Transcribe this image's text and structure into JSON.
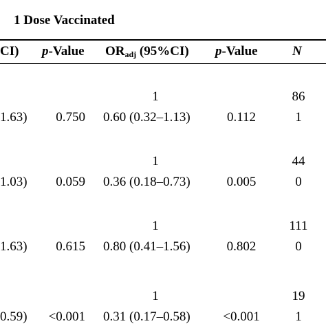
{
  "table": {
    "group_heading": "1 Dose Vaccinated",
    "headers": {
      "prev_ci_tail": "CI)",
      "p_value_italic": "p",
      "p_value_rest": "-Value",
      "or_prefix": "OR",
      "or_sub": "adj",
      "or_suffix": " (95%CI)",
      "p_value2_italic": "p",
      "p_value2_rest": "-Value",
      "n": "N"
    },
    "rows": [
      {
        "ref_or": "1",
        "ref_n": "86",
        "prev_ci": "1.63)",
        "p": "0.750",
        "or": "0.60 (0.32–1.13)",
        "p2": "0.112",
        "n": "1"
      },
      {
        "ref_or": "1",
        "ref_n": "44",
        "prev_ci": "1.03)",
        "p": "0.059",
        "or": "0.36 (0.18–0.73)",
        "p2": "0.005",
        "n": "0"
      },
      {
        "ref_or": "1",
        "ref_n": "111",
        "prev_ci": "1.63)",
        "p": "0.615",
        "or": "0.80 (0.41–1.56)",
        "p2": "0.802",
        "n": "0"
      },
      {
        "ref_or": "1",
        "ref_n": "19",
        "prev_ci": "0.59)",
        "p": "<0.001",
        "or": "0.31 (0.17–0.58)",
        "p2": "<0.001",
        "n": "1"
      }
    ]
  }
}
